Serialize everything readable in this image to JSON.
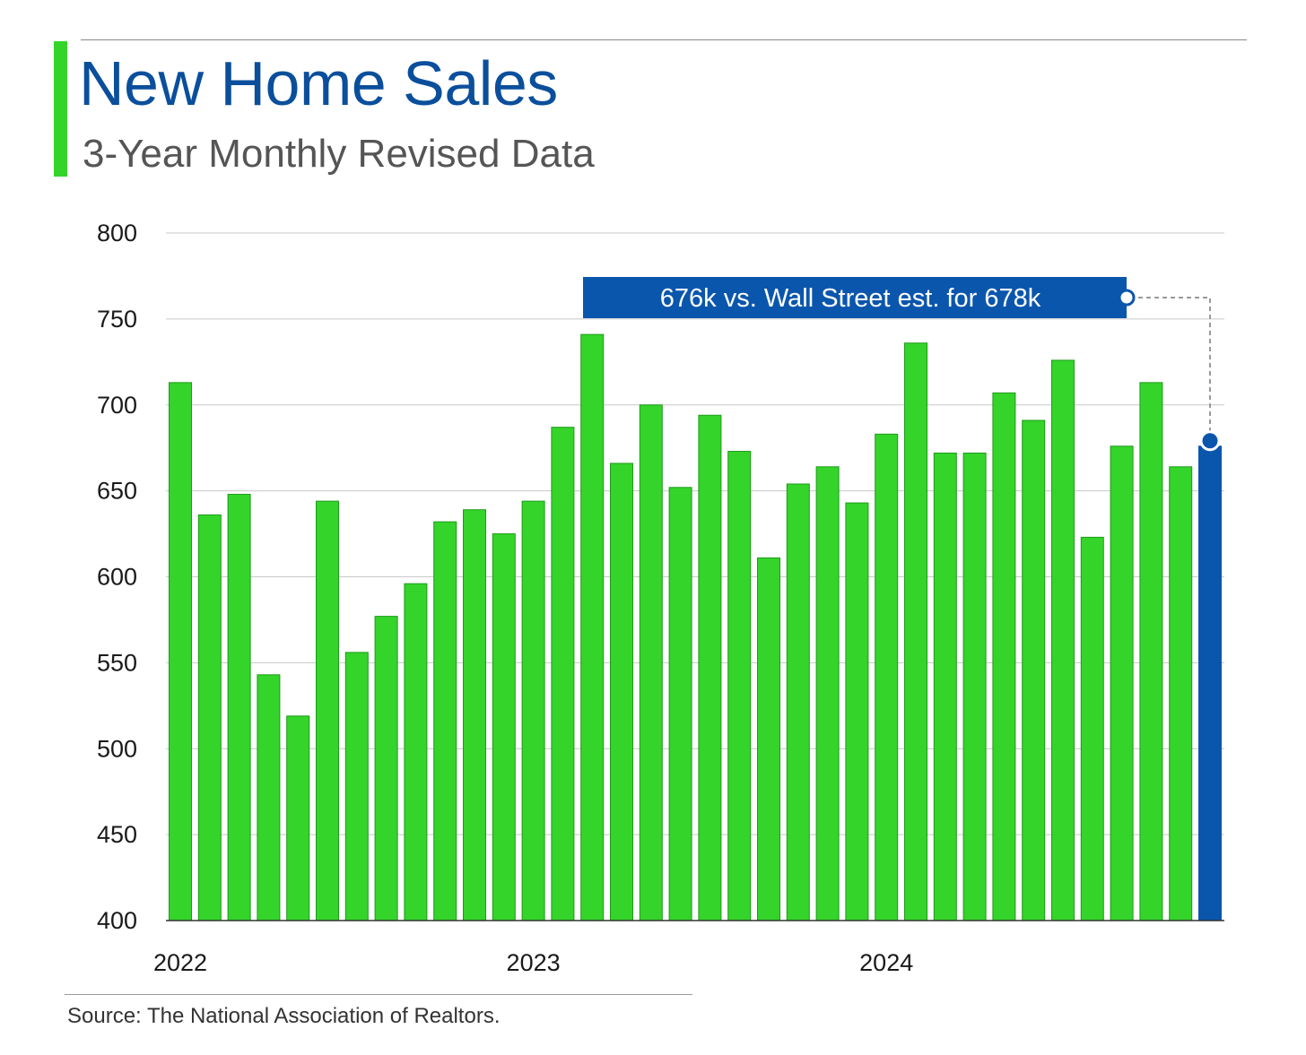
{
  "header": {
    "title": "New Home Sales",
    "subtitle": "3-Year Monthly Revised Data"
  },
  "footer": {
    "source": "Source: The National Association of Realtors."
  },
  "colors": {
    "bar": "#34d42a",
    "bar_outline": "#1f9a1a",
    "highlight": "#0b56ad",
    "title": "#0b4f9c",
    "grid": "#c8c8c8"
  },
  "chart_data": {
    "type": "bar",
    "title": "New Home Sales",
    "subtitle": "3-Year Monthly Revised Data",
    "x_tick_labels": [
      "2022",
      "2023",
      "2024"
    ],
    "x_tick_positions": [
      0,
      12,
      24
    ],
    "values": [
      713,
      636,
      648,
      543,
      519,
      644,
      556,
      577,
      596,
      632,
      639,
      625,
      644,
      687,
      741,
      666,
      700,
      652,
      694,
      673,
      611,
      654,
      664,
      643,
      683,
      736,
      672,
      672,
      707,
      691,
      726,
      623,
      676,
      713,
      664,
      676
    ],
    "highlight_index": 35,
    "annotation": "676k vs. Wall Street est. for 678k",
    "ylim": [
      400,
      800
    ],
    "yticks": [
      400,
      450,
      500,
      550,
      600,
      650,
      700,
      750,
      800
    ],
    "grid": true,
    "legend": "none"
  }
}
